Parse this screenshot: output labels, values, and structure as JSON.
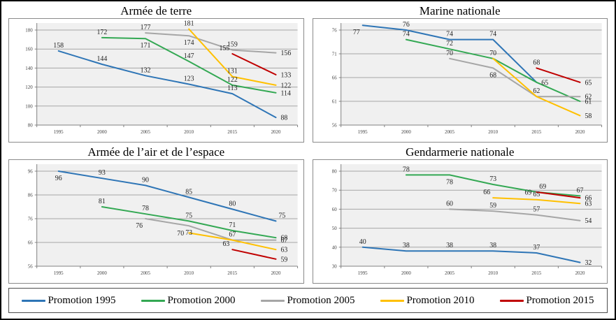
{
  "window": {
    "background": "#FFFFFF",
    "border_color": "#000000"
  },
  "style": {
    "plot_bg": "#F0F0F0",
    "grid_color": "#A6A6A6",
    "axis_color": "#808080",
    "tick_label_color": "#3F3F3F",
    "data_label_color": "#222222"
  },
  "legend": {
    "items": [
      {
        "label": "Promotion 1995",
        "color": "#2E75B6"
      },
      {
        "label": "Promotion 2000",
        "color": "#33A853"
      },
      {
        "label": "Promotion 2005",
        "color": "#A6A6A6"
      },
      {
        "label": "Promotion 2010",
        "color": "#FFC000"
      },
      {
        "label": "Promotion 2015",
        "color": "#C00000"
      }
    ]
  },
  "chart_data": [
    {
      "type": "line",
      "title": "Armée de terre",
      "x": [
        1995,
        2000,
        2005,
        2010,
        2015,
        2020
      ],
      "ylim": [
        80,
        180
      ],
      "ytick_step": 20,
      "grid": true,
      "legend_position": "shared-bottom",
      "series": [
        {
          "name": "Promotion 1995",
          "color": "#2E75B6",
          "points": [
            [
              1995,
              158
            ],
            [
              2000,
              144
            ],
            [
              2005,
              132
            ],
            [
              2010,
              123
            ],
            [
              2015,
              113
            ],
            [
              2020,
              88
            ]
          ],
          "label_pos": [
            "above",
            "above",
            "above",
            "above",
            "above",
            "right"
          ]
        },
        {
          "name": "Promotion 2000",
          "color": "#33A853",
          "points": [
            [
              2000,
              172
            ],
            [
              2005,
              171
            ],
            [
              2010,
              147
            ],
            [
              2015,
              122
            ],
            [
              2020,
              114
            ]
          ],
          "label_pos": [
            "above",
            "below",
            "above",
            "above",
            "right"
          ]
        },
        {
          "name": "Promotion 2005",
          "color": "#A6A6A6",
          "points": [
            [
              2005,
              177
            ],
            [
              2010,
              174
            ],
            [
              2015,
              159
            ],
            [
              2020,
              156
            ]
          ],
          "label_pos": [
            "above",
            "below",
            "above",
            "right"
          ]
        },
        {
          "name": "Promotion 2010",
          "color": "#FFC000",
          "points": [
            [
              2010,
              181
            ],
            [
              2015,
              131
            ],
            [
              2020,
              122
            ]
          ],
          "label_pos": [
            "above",
            "above",
            "right"
          ]
        },
        {
          "name": "Promotion 2015",
          "color": "#C00000",
          "points": [
            [
              2015,
              155
            ],
            [
              2020,
              133
            ]
          ],
          "label_pos": [
            "above-left",
            "right"
          ]
        }
      ]
    },
    {
      "type": "line",
      "title": "Marine nationale",
      "x": [
        1995,
        2000,
        2005,
        2010,
        2015,
        2020
      ],
      "ylim": [
        56,
        76
      ],
      "ytick_step": 5,
      "grid": true,
      "legend_position": "shared-bottom",
      "series": [
        {
          "name": "Promotion 1995",
          "color": "#2E75B6",
          "points": [
            [
              1995,
              77
            ],
            [
              2000,
              76
            ],
            [
              2005,
              74
            ],
            [
              2010,
              74
            ],
            [
              2015,
              65
            ]
          ],
          "label_pos": [
            "below-left",
            "above",
            "above",
            "above",
            "right"
          ]
        },
        {
          "name": "Promotion 2000",
          "color": "#33A853",
          "points": [
            [
              2000,
              74
            ],
            [
              2005,
              72
            ],
            [
              2010,
              70
            ],
            [
              2015,
              65
            ],
            [
              2020,
              61
            ]
          ],
          "label_pos": [
            "above",
            "above",
            "above",
            "none",
            "right"
          ]
        },
        {
          "name": "Promotion 2005",
          "color": "#A6A6A6",
          "points": [
            [
              2005,
              70
            ],
            [
              2010,
              68
            ],
            [
              2015,
              62
            ],
            [
              2020,
              62
            ]
          ],
          "label_pos": [
            "above",
            "below",
            "above",
            "right"
          ]
        },
        {
          "name": "Promotion 2010",
          "color": "#FFC000",
          "points": [
            [
              2010,
              70
            ],
            [
              2015,
              62
            ],
            [
              2020,
              58
            ]
          ],
          "label_pos": [
            "none",
            "none",
            "right"
          ]
        },
        {
          "name": "Promotion 2015",
          "color": "#C00000",
          "points": [
            [
              2015,
              68
            ],
            [
              2020,
              65
            ]
          ],
          "label_pos": [
            "above",
            "right"
          ]
        }
      ]
    },
    {
      "type": "line",
      "title": "Armée de l’air et de l’espace",
      "x": [
        1995,
        2000,
        2005,
        2010,
        2015,
        2020
      ],
      "ylim": [
        56,
        96
      ],
      "ytick_step": 10,
      "grid": true,
      "legend_position": "shared-bottom",
      "series": [
        {
          "name": "Promotion 1995",
          "color": "#2E75B6",
          "points": [
            [
              1995,
              96
            ],
            [
              2000,
              93
            ],
            [
              2005,
              90
            ],
            [
              2010,
              85
            ],
            [
              2015,
              80
            ],
            [
              2020,
              75
            ]
          ],
          "label_pos": [
            "below",
            "above",
            "above",
            "above",
            "above",
            "above-right"
          ]
        },
        {
          "name": "Promotion 2000",
          "color": "#33A853",
          "points": [
            [
              2000,
              81
            ],
            [
              2005,
              78
            ],
            [
              2010,
              75
            ],
            [
              2015,
              71
            ],
            [
              2020,
              68
            ]
          ],
          "label_pos": [
            "above",
            "above",
            "above",
            "above",
            "right"
          ]
        },
        {
          "name": "Promotion 2005",
          "color": "#A6A6A6",
          "points": [
            [
              2005,
              76
            ],
            [
              2010,
              73
            ],
            [
              2015,
              67
            ],
            [
              2020,
              67
            ]
          ],
          "label_pos": [
            "below-left",
            "below",
            "above",
            "right"
          ]
        },
        {
          "name": "Promotion 2010",
          "color": "#FFC000",
          "points": [
            [
              2010,
              70
            ],
            [
              2015,
              67
            ],
            [
              2020,
              63
            ]
          ],
          "label_pos": [
            "left",
            "none",
            "right"
          ]
        },
        {
          "name": "Promotion 2015",
          "color": "#C00000",
          "points": [
            [
              2015,
              63
            ],
            [
              2020,
              59
            ]
          ],
          "label_pos": [
            "above-left",
            "right"
          ]
        }
      ]
    },
    {
      "type": "line",
      "title": "Gendarmerie nationale",
      "x": [
        1995,
        2000,
        2005,
        2010,
        2015,
        2020
      ],
      "ylim": [
        30,
        80
      ],
      "ytick_step": 10,
      "grid": true,
      "legend_position": "shared-bottom",
      "series": [
        {
          "name": "Promotion 1995",
          "color": "#2E75B6",
          "points": [
            [
              1995,
              40
            ],
            [
              2000,
              38
            ],
            [
              2005,
              38
            ],
            [
              2010,
              38
            ],
            [
              2015,
              37
            ],
            [
              2020,
              32
            ]
          ],
          "label_pos": [
            "above",
            "above",
            "above",
            "above",
            "above",
            "right"
          ]
        },
        {
          "name": "Promotion 2000",
          "color": "#33A853",
          "points": [
            [
              2000,
              78
            ],
            [
              2005,
              78
            ],
            [
              2010,
              73
            ],
            [
              2015,
              69
            ],
            [
              2020,
              67
            ]
          ],
          "label_pos": [
            "above",
            "below",
            "above",
            "above-right",
            "above"
          ]
        },
        {
          "name": "Promotion 2005",
          "color": "#A6A6A6",
          "points": [
            [
              2005,
              60
            ],
            [
              2010,
              59
            ],
            [
              2015,
              57
            ],
            [
              2020,
              54
            ]
          ],
          "label_pos": [
            "above",
            "above",
            "above",
            "right"
          ]
        },
        {
          "name": "Promotion 2010",
          "color": "#FFC000",
          "points": [
            [
              2010,
              66
            ],
            [
              2015,
              65
            ],
            [
              2020,
              63
            ]
          ],
          "label_pos": [
            "above-left",
            "above",
            "right"
          ]
        },
        {
          "name": "Promotion 2015",
          "color": "#C00000",
          "points": [
            [
              2015,
              69
            ],
            [
              2020,
              66
            ]
          ],
          "label_pos": [
            "left",
            "right"
          ]
        }
      ]
    }
  ]
}
